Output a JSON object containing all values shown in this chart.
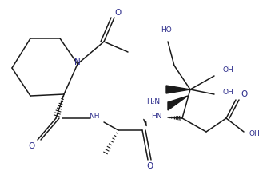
{
  "bg_color": "#ffffff",
  "line_color": "#1a1a1a",
  "text_color": "#2a2a8a",
  "lw": 1.1,
  "figsize": [
    3.29,
    2.19
  ],
  "dpi": 100,
  "xlim": [
    0,
    329
  ],
  "ylim": [
    0,
    219
  ]
}
